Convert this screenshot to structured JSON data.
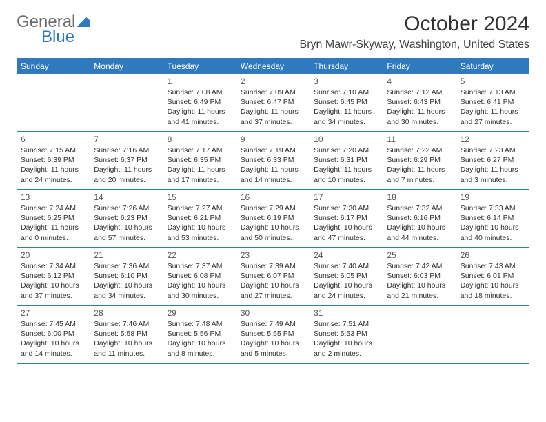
{
  "logo": {
    "part1": "General",
    "part2": "Blue"
  },
  "title": "October 2024",
  "location": "Bryn Mawr-Skyway, Washington, United States",
  "colors": {
    "accent": "#2f7abf",
    "text": "#333333",
    "muted": "#6b6b6b"
  },
  "dow": [
    "Sunday",
    "Monday",
    "Tuesday",
    "Wednesday",
    "Thursday",
    "Friday",
    "Saturday"
  ],
  "weeks": [
    [
      null,
      null,
      {
        "n": "1",
        "sr": "Sunrise: 7:08 AM",
        "ss": "Sunset: 6:49 PM",
        "d1": "Daylight: 11 hours",
        "d2": "and 41 minutes."
      },
      {
        "n": "2",
        "sr": "Sunrise: 7:09 AM",
        "ss": "Sunset: 6:47 PM",
        "d1": "Daylight: 11 hours",
        "d2": "and 37 minutes."
      },
      {
        "n": "3",
        "sr": "Sunrise: 7:10 AM",
        "ss": "Sunset: 6:45 PM",
        "d1": "Daylight: 11 hours",
        "d2": "and 34 minutes."
      },
      {
        "n": "4",
        "sr": "Sunrise: 7:12 AM",
        "ss": "Sunset: 6:43 PM",
        "d1": "Daylight: 11 hours",
        "d2": "and 30 minutes."
      },
      {
        "n": "5",
        "sr": "Sunrise: 7:13 AM",
        "ss": "Sunset: 6:41 PM",
        "d1": "Daylight: 11 hours",
        "d2": "and 27 minutes."
      }
    ],
    [
      {
        "n": "6",
        "sr": "Sunrise: 7:15 AM",
        "ss": "Sunset: 6:39 PM",
        "d1": "Daylight: 11 hours",
        "d2": "and 24 minutes."
      },
      {
        "n": "7",
        "sr": "Sunrise: 7:16 AM",
        "ss": "Sunset: 6:37 PM",
        "d1": "Daylight: 11 hours",
        "d2": "and 20 minutes."
      },
      {
        "n": "8",
        "sr": "Sunrise: 7:17 AM",
        "ss": "Sunset: 6:35 PM",
        "d1": "Daylight: 11 hours",
        "d2": "and 17 minutes."
      },
      {
        "n": "9",
        "sr": "Sunrise: 7:19 AM",
        "ss": "Sunset: 6:33 PM",
        "d1": "Daylight: 11 hours",
        "d2": "and 14 minutes."
      },
      {
        "n": "10",
        "sr": "Sunrise: 7:20 AM",
        "ss": "Sunset: 6:31 PM",
        "d1": "Daylight: 11 hours",
        "d2": "and 10 minutes."
      },
      {
        "n": "11",
        "sr": "Sunrise: 7:22 AM",
        "ss": "Sunset: 6:29 PM",
        "d1": "Daylight: 11 hours",
        "d2": "and 7 minutes."
      },
      {
        "n": "12",
        "sr": "Sunrise: 7:23 AM",
        "ss": "Sunset: 6:27 PM",
        "d1": "Daylight: 11 hours",
        "d2": "and 3 minutes."
      }
    ],
    [
      {
        "n": "13",
        "sr": "Sunrise: 7:24 AM",
        "ss": "Sunset: 6:25 PM",
        "d1": "Daylight: 11 hours",
        "d2": "and 0 minutes."
      },
      {
        "n": "14",
        "sr": "Sunrise: 7:26 AM",
        "ss": "Sunset: 6:23 PM",
        "d1": "Daylight: 10 hours",
        "d2": "and 57 minutes."
      },
      {
        "n": "15",
        "sr": "Sunrise: 7:27 AM",
        "ss": "Sunset: 6:21 PM",
        "d1": "Daylight: 10 hours",
        "d2": "and 53 minutes."
      },
      {
        "n": "16",
        "sr": "Sunrise: 7:29 AM",
        "ss": "Sunset: 6:19 PM",
        "d1": "Daylight: 10 hours",
        "d2": "and 50 minutes."
      },
      {
        "n": "17",
        "sr": "Sunrise: 7:30 AM",
        "ss": "Sunset: 6:17 PM",
        "d1": "Daylight: 10 hours",
        "d2": "and 47 minutes."
      },
      {
        "n": "18",
        "sr": "Sunrise: 7:32 AM",
        "ss": "Sunset: 6:16 PM",
        "d1": "Daylight: 10 hours",
        "d2": "and 44 minutes."
      },
      {
        "n": "19",
        "sr": "Sunrise: 7:33 AM",
        "ss": "Sunset: 6:14 PM",
        "d1": "Daylight: 10 hours",
        "d2": "and 40 minutes."
      }
    ],
    [
      {
        "n": "20",
        "sr": "Sunrise: 7:34 AM",
        "ss": "Sunset: 6:12 PM",
        "d1": "Daylight: 10 hours",
        "d2": "and 37 minutes."
      },
      {
        "n": "21",
        "sr": "Sunrise: 7:36 AM",
        "ss": "Sunset: 6:10 PM",
        "d1": "Daylight: 10 hours",
        "d2": "and 34 minutes."
      },
      {
        "n": "22",
        "sr": "Sunrise: 7:37 AM",
        "ss": "Sunset: 6:08 PM",
        "d1": "Daylight: 10 hours",
        "d2": "and 30 minutes."
      },
      {
        "n": "23",
        "sr": "Sunrise: 7:39 AM",
        "ss": "Sunset: 6:07 PM",
        "d1": "Daylight: 10 hours",
        "d2": "and 27 minutes."
      },
      {
        "n": "24",
        "sr": "Sunrise: 7:40 AM",
        "ss": "Sunset: 6:05 PM",
        "d1": "Daylight: 10 hours",
        "d2": "and 24 minutes."
      },
      {
        "n": "25",
        "sr": "Sunrise: 7:42 AM",
        "ss": "Sunset: 6:03 PM",
        "d1": "Daylight: 10 hours",
        "d2": "and 21 minutes."
      },
      {
        "n": "26",
        "sr": "Sunrise: 7:43 AM",
        "ss": "Sunset: 6:01 PM",
        "d1": "Daylight: 10 hours",
        "d2": "and 18 minutes."
      }
    ],
    [
      {
        "n": "27",
        "sr": "Sunrise: 7:45 AM",
        "ss": "Sunset: 6:00 PM",
        "d1": "Daylight: 10 hours",
        "d2": "and 14 minutes."
      },
      {
        "n": "28",
        "sr": "Sunrise: 7:46 AM",
        "ss": "Sunset: 5:58 PM",
        "d1": "Daylight: 10 hours",
        "d2": "and 11 minutes."
      },
      {
        "n": "29",
        "sr": "Sunrise: 7:48 AM",
        "ss": "Sunset: 5:56 PM",
        "d1": "Daylight: 10 hours",
        "d2": "and 8 minutes."
      },
      {
        "n": "30",
        "sr": "Sunrise: 7:49 AM",
        "ss": "Sunset: 5:55 PM",
        "d1": "Daylight: 10 hours",
        "d2": "and 5 minutes."
      },
      {
        "n": "31",
        "sr": "Sunrise: 7:51 AM",
        "ss": "Sunset: 5:53 PM",
        "d1": "Daylight: 10 hours",
        "d2": "and 2 minutes."
      },
      null,
      null
    ]
  ]
}
